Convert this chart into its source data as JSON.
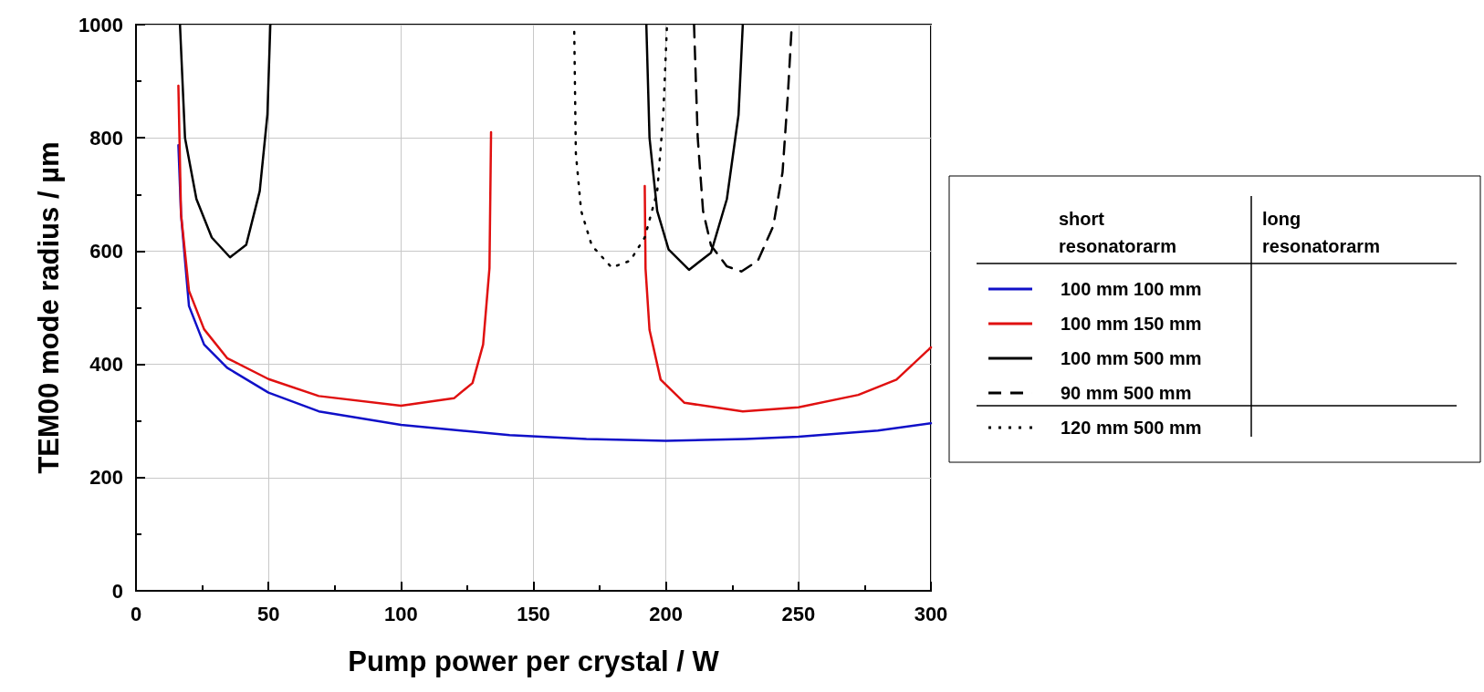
{
  "chart_data": {
    "type": "line",
    "xlabel": "Pump power per crystal / W",
    "ylabel": "TEM00 mode radius / µm",
    "annotations": [
      "short resonatorarm",
      "long resonatorarm"
    ],
    "xlim": [
      0,
      300
    ],
    "xticks": [
      0,
      50,
      100,
      150,
      200,
      250,
      300
    ],
    "ylim": [
      0,
      1000
    ],
    "yticks": [
      0,
      200,
      400,
      600,
      800,
      1000
    ],
    "grid": true,
    "legend": "right",
    "marker": "none",
    "series": [
      {
        "name": "100 mm 100 mm",
        "color": "#1010c8",
        "line_style": "solid",
        "x": [
          16,
          17,
          20,
          25.7,
          34.4,
          50,
          69,
          100,
          141,
          170,
          200,
          230,
          250,
          280,
          300
        ],
        "values": [
          787,
          665,
          503,
          435,
          394,
          350,
          317,
          293,
          275,
          268,
          265,
          268,
          272,
          283,
          296
        ]
      },
      {
        "name": "100 mm 150 mm",
        "color": "#e01010",
        "line_style": "solid",
        "x": [
          16,
          17,
          20,
          25.7,
          34.4,
          50,
          69,
          100,
          120,
          127,
          131,
          133.4,
          134,
          163,
          192,
          192.3,
          193.8,
          198,
          207,
          229,
          250,
          272.6,
          287,
          300
        ],
        "values": [
          892,
          665,
          530,
          462,
          411,
          374,
          344,
          327,
          340,
          367,
          435,
          570,
          810,
          null,
          715,
          569,
          461,
          373,
          332,
          317,
          324,
          346,
          373,
          430
        ]
      },
      {
        "name": "100 mm 500 mm",
        "color": "#000000",
        "line_style": "solid",
        "x": [
          16.6,
          18.5,
          22.8,
          28.6,
          35.5,
          41.6,
          46.7,
          49.6,
          50.7,
          120,
          192.6,
          193.8,
          196.7,
          201,
          208.7,
          217,
          223,
          227.4,
          229
        ],
        "values": [
          1000,
          800,
          692,
          624,
          589,
          611,
          706,
          841,
          1000,
          null,
          1000,
          800,
          671,
          603,
          567,
          597,
          692,
          841,
          1000
        ]
      },
      {
        "name": "90 mm 500 mm",
        "color": "#000000",
        "line_style": "dashed",
        "x": [
          210.6,
          212,
          214,
          217,
          223,
          228.5,
          234.7,
          240.5,
          244,
          246,
          247.5
        ],
        "values": [
          1000,
          800,
          671,
          610,
          573,
          564,
          583,
          644,
          739,
          875,
          1000
        ]
      },
      {
        "name": "120 mm 500 mm",
        "color": "#000000",
        "line_style": "dotted",
        "x": [
          165.4,
          166,
          168,
          172,
          179.5,
          186.5,
          192,
          196.7,
          199,
          200.4
        ],
        "values": [
          987,
          773,
          671,
          610,
          571,
          583,
          624,
          705,
          841,
          1000
        ]
      }
    ]
  }
}
